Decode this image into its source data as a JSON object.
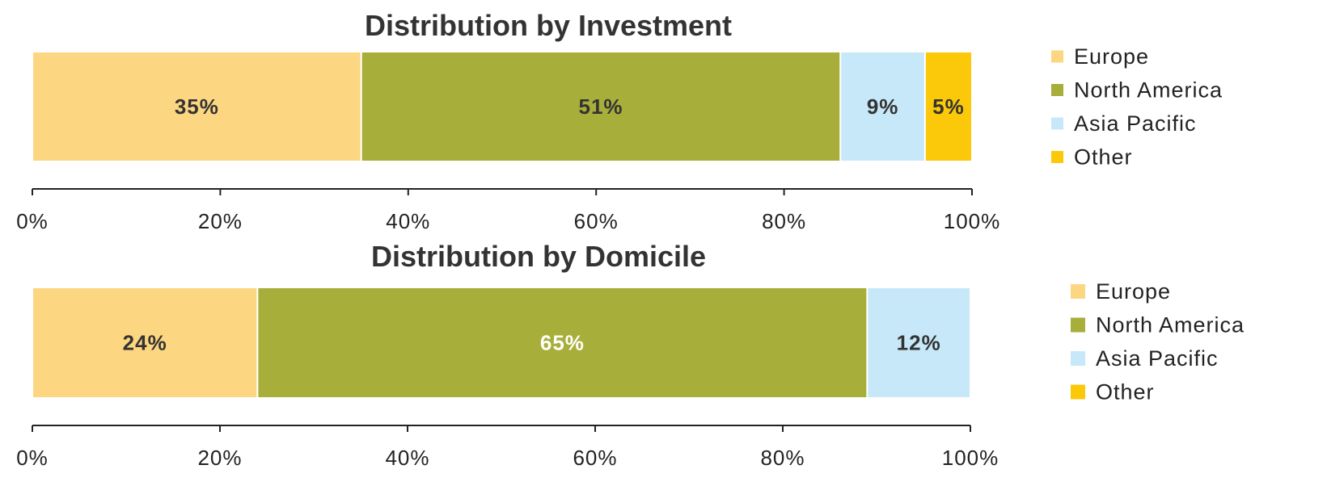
{
  "chart_data": [
    {
      "type": "bar",
      "orientation": "horizontal-stacked-100",
      "title": "Distribution by Investment",
      "series": [
        {
          "name": "Europe",
          "value": 35,
          "label": "35%",
          "color": "#FCD680",
          "label_color": "#333333"
        },
        {
          "name": "North America",
          "value": 51,
          "label": "51%",
          "color": "#A8AE3A",
          "label_color": "#333333"
        },
        {
          "name": "Asia Pacific",
          "value": 9,
          "label": "9%",
          "color": "#C7E8F8",
          "label_color": "#333333"
        },
        {
          "name": "Other",
          "value": 5,
          "label": "5%",
          "color": "#FCC80A",
          "label_color": "#333333"
        }
      ],
      "xlim": [
        0,
        100
      ],
      "xticks": [
        "0%",
        "20%",
        "40%",
        "60%",
        "80%",
        "100%"
      ],
      "legend": [
        "Europe",
        "North America",
        "Asia Pacific",
        "Other"
      ],
      "legend_position": "right"
    },
    {
      "type": "bar",
      "orientation": "horizontal-stacked-100",
      "title": "Distribution by Domicile",
      "series": [
        {
          "name": "Europe",
          "value": 24,
          "label": "24%",
          "color": "#FCD680",
          "label_color": "#333333"
        },
        {
          "name": "North America",
          "value": 65,
          "label": "65%",
          "color": "#A8AE3A",
          "label_color": "#ffffff"
        },
        {
          "name": "Asia Pacific",
          "value": 12,
          "label": "12%",
          "color": "#C7E8F8",
          "label_color": "#333333"
        },
        {
          "name": "Other",
          "value": 0,
          "label": "",
          "color": "#FCC80A",
          "label_color": "#333333"
        }
      ],
      "xlim": [
        0,
        100
      ],
      "xticks": [
        "0%",
        "20%",
        "40%",
        "60%",
        "80%",
        "100%"
      ],
      "legend": [
        "Europe",
        "North America",
        "Asia Pacific",
        "Other"
      ],
      "legend_position": "right"
    }
  ]
}
